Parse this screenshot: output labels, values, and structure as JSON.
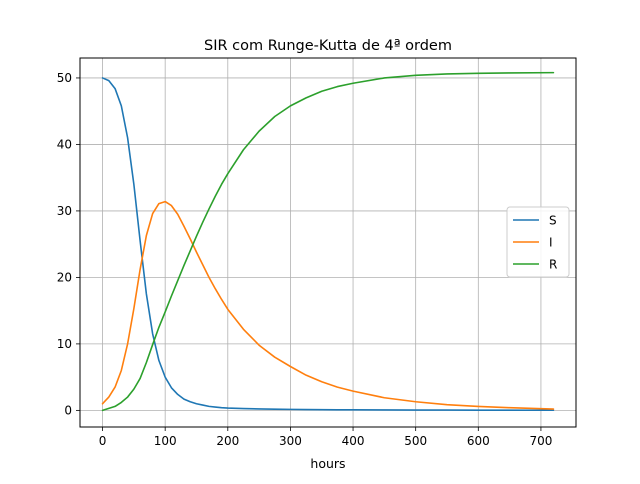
{
  "chart_data": {
    "type": "line",
    "title": "SIR com Runge-Kutta de 4ª ordem",
    "xlabel": "hours",
    "ylabel": "",
    "xlim": [
      -36,
      756
    ],
    "ylim": [
      -2.5,
      53
    ],
    "xticks": [
      0,
      100,
      200,
      300,
      400,
      500,
      600,
      700
    ],
    "yticks": [
      0,
      10,
      20,
      30,
      40,
      50
    ],
    "grid": true,
    "legend_position": "center-right",
    "x": [
      0,
      10,
      20,
      30,
      40,
      50,
      60,
      70,
      80,
      90,
      100,
      110,
      120,
      130,
      140,
      150,
      160,
      170,
      180,
      190,
      200,
      225,
      250,
      275,
      300,
      325,
      350,
      375,
      400,
      450,
      500,
      550,
      600,
      650,
      720
    ],
    "series": [
      {
        "name": "S",
        "color": "#1f77b4",
        "values": [
          50.0,
          49.6,
          48.4,
          45.8,
          41.0,
          34.0,
          25.5,
          17.5,
          11.5,
          7.5,
          5.0,
          3.4,
          2.4,
          1.7,
          1.3,
          1.0,
          0.8,
          0.6,
          0.5,
          0.4,
          0.35,
          0.28,
          0.22,
          0.18,
          0.15,
          0.12,
          0.1,
          0.09,
          0.08,
          0.06,
          0.05,
          0.04,
          0.03,
          0.03,
          0.02
        ]
      },
      {
        "name": "I",
        "color": "#ff7f0e",
        "values": [
          1.0,
          2.0,
          3.5,
          6.0,
          10.0,
          15.3,
          21.2,
          26.3,
          29.6,
          31.1,
          31.4,
          30.8,
          29.5,
          27.7,
          25.8,
          23.8,
          21.9,
          20.0,
          18.3,
          16.7,
          15.2,
          12.2,
          9.8,
          8.0,
          6.6,
          5.3,
          4.3,
          3.5,
          2.9,
          1.9,
          1.3,
          0.85,
          0.6,
          0.4,
          0.2
        ]
      },
      {
        "name": "R",
        "color": "#2ca02c",
        "values": [
          0.0,
          0.3,
          0.6,
          1.2,
          2.0,
          3.2,
          4.8,
          7.2,
          9.9,
          12.5,
          14.8,
          17.2,
          19.5,
          21.8,
          24.0,
          26.2,
          28.3,
          30.3,
          32.2,
          34.0,
          35.6,
          39.2,
          42.0,
          44.2,
          45.8,
          47.0,
          48.0,
          48.7,
          49.2,
          50.0,
          50.4,
          50.6,
          50.7,
          50.75,
          50.8
        ]
      }
    ]
  }
}
